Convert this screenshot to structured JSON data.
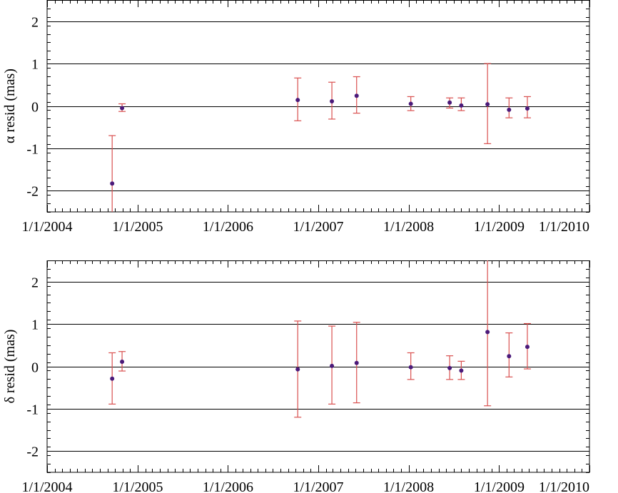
{
  "colors": {
    "error_bar": "#d9504f",
    "point": "#4b1a7a",
    "axis": "#000000",
    "background": "#ffffff"
  },
  "chart_data": [
    {
      "type": "scatter",
      "title": "",
      "xlabel": "",
      "ylabel": "α resid (mas)",
      "x_tick_labels": [
        "1/1/2004",
        "1/1/2005",
        "1/1/2006",
        "1/1/2007",
        "1/1/2008",
        "1/1/2009",
        "1/1/2010"
      ],
      "y_tick_labels": [
        "-2",
        "-1",
        "0",
        "1",
        "2"
      ],
      "y_ticks": [
        -2,
        -1,
        0,
        1,
        2
      ],
      "xlim": [
        "2004-01-01",
        "2010-01-01"
      ],
      "ylim": [
        -2.5,
        2.5
      ],
      "grid": "horizontal lines at major y ticks",
      "points": [
        {
          "date": "2004-09-20",
          "y": -1.83,
          "err_low": -2.5,
          "err_high": -0.7
        },
        {
          "date": "2004-10-30",
          "y": -0.05,
          "err_low": -0.13,
          "err_high": 0.05
        },
        {
          "date": "2006-10-10",
          "y": 0.14,
          "err_low": -0.35,
          "err_high": 0.66
        },
        {
          "date": "2007-02-25",
          "y": 0.11,
          "err_low": -0.31,
          "err_high": 0.56
        },
        {
          "date": "2007-06-05",
          "y": 0.24,
          "err_low": -0.17,
          "err_high": 0.69
        },
        {
          "date": "2008-01-10",
          "y": 0.05,
          "err_low": -0.11,
          "err_high": 0.22
        },
        {
          "date": "2008-06-15",
          "y": 0.08,
          "err_low": -0.05,
          "err_high": 0.19
        },
        {
          "date": "2008-08-01",
          "y": 0.01,
          "err_low": -0.11,
          "err_high": 0.19
        },
        {
          "date": "2008-11-15",
          "y": 0.04,
          "err_low": -0.89,
          "err_high": 1.0
        },
        {
          "date": "2009-02-10",
          "y": -0.09,
          "err_low": -0.28,
          "err_high": 0.19
        },
        {
          "date": "2009-04-25",
          "y": -0.06,
          "err_low": -0.28,
          "err_high": 0.22
        }
      ]
    },
    {
      "type": "scatter",
      "title": "",
      "xlabel": "",
      "ylabel": "δ resid (mas)",
      "x_tick_labels": [
        "1/1/2004",
        "1/1/2005",
        "1/1/2006",
        "1/1/2007",
        "1/1/2008",
        "1/1/2009",
        "1/1/2010"
      ],
      "y_tick_labels": [
        "-2",
        "-1",
        "0",
        "1",
        "2"
      ],
      "y_ticks": [
        -2,
        -1,
        0,
        1,
        2
      ],
      "xlim": [
        "2004-01-01",
        "2010-01-01"
      ],
      "ylim": [
        -2.5,
        2.5
      ],
      "grid": "horizontal lines at major y ticks",
      "points": [
        {
          "date": "2004-09-20",
          "y": -0.29,
          "err_low": -0.89,
          "err_high": 0.32
        },
        {
          "date": "2004-10-30",
          "y": 0.11,
          "err_low": -0.11,
          "err_high": 0.35
        },
        {
          "date": "2006-10-10",
          "y": -0.07,
          "err_low": -1.2,
          "err_high": 1.07
        },
        {
          "date": "2007-02-25",
          "y": 0.01,
          "err_low": -0.89,
          "err_high": 0.95
        },
        {
          "date": "2007-06-05",
          "y": 0.08,
          "err_low": -0.86,
          "err_high": 1.04
        },
        {
          "date": "2008-01-10",
          "y": -0.02,
          "err_low": -0.31,
          "err_high": 0.32
        },
        {
          "date": "2008-06-15",
          "y": -0.04,
          "err_low": -0.31,
          "err_high": 0.25
        },
        {
          "date": "2008-08-01",
          "y": -0.1,
          "err_low": -0.31,
          "err_high": 0.12
        },
        {
          "date": "2008-11-15",
          "y": 0.81,
          "err_low": -0.93,
          "err_high": 2.5
        },
        {
          "date": "2009-02-10",
          "y": 0.24,
          "err_low": -0.25,
          "err_high": 0.79
        },
        {
          "date": "2009-04-25",
          "y": 0.46,
          "err_low": -0.06,
          "err_high": 1.01
        }
      ]
    }
  ]
}
